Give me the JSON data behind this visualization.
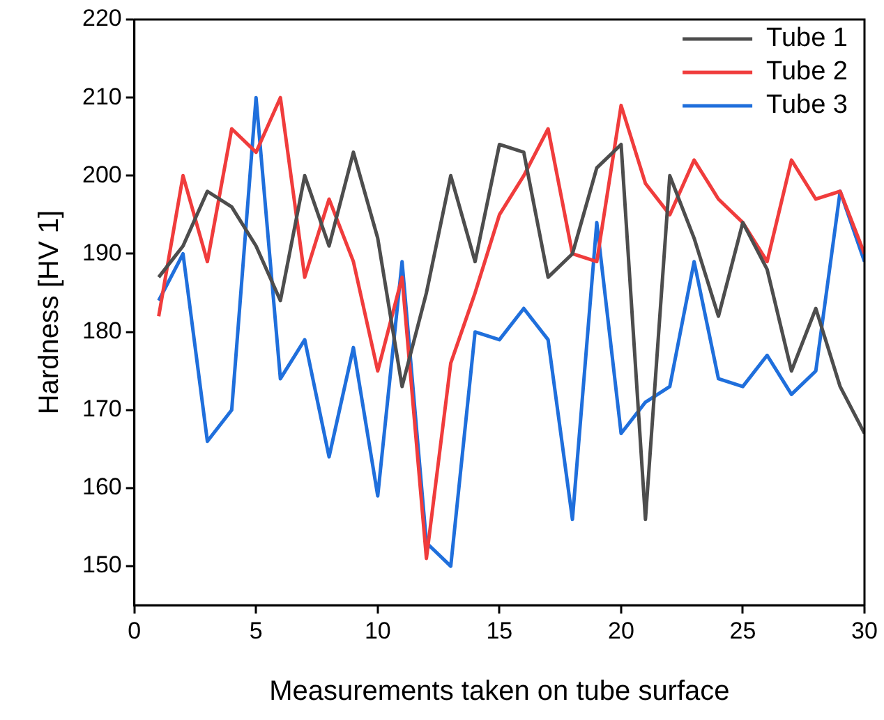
{
  "chart_data": {
    "type": "line",
    "xlabel": "Measurements taken on tube surface",
    "ylabel": "Hardness [HV 1]",
    "x": [
      1,
      2,
      3,
      4,
      5,
      6,
      7,
      8,
      9,
      10,
      11,
      12,
      13,
      14,
      15,
      16,
      17,
      18,
      19,
      20,
      21,
      22,
      23,
      24,
      25,
      26,
      27,
      28,
      29,
      30
    ],
    "series": [
      {
        "name": "Tube 1",
        "color": "#4d4d4d",
        "values": [
          187,
          191,
          198,
          196,
          191,
          184,
          200,
          191,
          203,
          192,
          173,
          185,
          200,
          189,
          204,
          203,
          187,
          190,
          201,
          204,
          156,
          200,
          192,
          182,
          194,
          188,
          175,
          183,
          173,
          167
        ]
      },
      {
        "name": "Tube 2",
        "color": "#f03c3c",
        "values": [
          182,
          200,
          189,
          206,
          203,
          210,
          187,
          197,
          189,
          175,
          187,
          151,
          176,
          185,
          195,
          200,
          206,
          190,
          189,
          209,
          199,
          195,
          202,
          197,
          194,
          189,
          202,
          197,
          198,
          190
        ]
      },
      {
        "name": "Tube 3",
        "color": "#1f6fdc",
        "values": [
          184,
          190,
          166,
          170,
          210,
          174,
          179,
          164,
          178,
          159,
          189,
          153,
          150,
          180,
          179,
          183,
          179,
          156,
          194,
          167,
          171,
          173,
          189,
          174,
          173,
          177,
          172,
          175,
          198,
          189
        ]
      }
    ],
    "xlim": [
      0,
      30
    ],
    "xticks": [
      0,
      5,
      10,
      15,
      20,
      25,
      30
    ],
    "ylim": [
      145,
      220
    ],
    "yticks": [
      150,
      160,
      170,
      180,
      190,
      200,
      210,
      220
    ],
    "grid": false,
    "legend": "top right",
    "marker": "none",
    "line_style": "solid"
  }
}
